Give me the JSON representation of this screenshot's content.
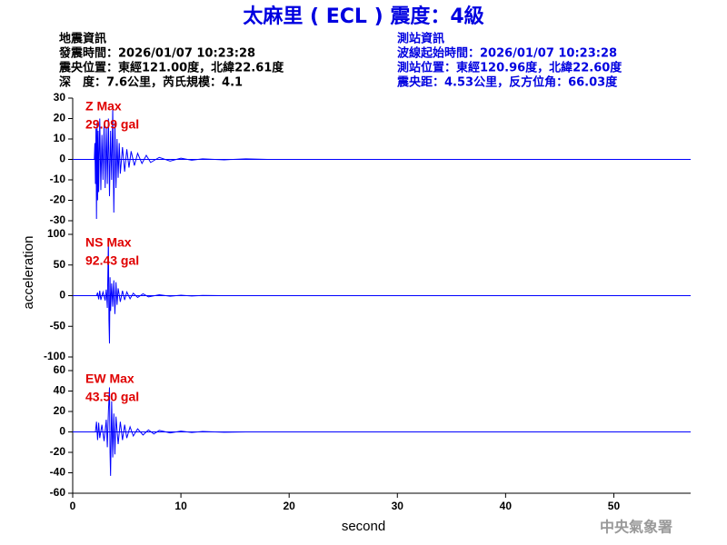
{
  "title": "太麻里 ( ECL ) 震度：4級",
  "event_info": [
    "地震資訊",
    "發震時間：2026/01/07 10:23:28",
    "震央位置：東經121.00度，北緯22.61度",
    "深　度：7.6公里，芮氏規模：4.1"
  ],
  "station_info": [
    "測站資訊",
    "波線起始時間：2026/01/07 10:23:28",
    "測站位置：東經120.96度，北緯22.60度",
    "震央距：4.53公里，反方位角：66.03度"
  ],
  "ylabel": "acceleration",
  "footer": "中央氣象署",
  "chart_data": [
    {
      "type": "line",
      "annotations": [
        "Z Max",
        "29.09 gal"
      ],
      "color": "#0000ff",
      "xlim": [
        0,
        57.1
      ],
      "ylim": [
        -30,
        30
      ],
      "yticks": [
        30,
        20,
        10,
        0,
        -10,
        -20,
        -30
      ],
      "x": [
        0,
        2.0,
        2.05,
        2.1,
        2.15,
        2.2,
        2.25,
        2.3,
        2.35,
        2.4,
        2.5,
        2.6,
        2.7,
        2.8,
        2.9,
        3.0,
        3.1,
        3.2,
        3.3,
        3.4,
        3.5,
        3.6,
        3.7,
        3.8,
        3.9,
        4.0,
        4.1,
        4.2,
        4.3,
        4.4,
        4.6,
        4.8,
        5.0,
        5.2,
        5.4,
        5.7,
        6.0,
        6.4,
        6.8,
        7.2,
        8.0,
        9.0,
        10.0,
        11.0,
        12.0,
        14.0,
        16.0,
        18.0,
        57
      ],
      "values": [
        0,
        0,
        8,
        -12,
        15,
        -29.09,
        18,
        -20,
        14,
        -16,
        20,
        -15,
        12,
        -10,
        17,
        -14,
        16,
        -12,
        20,
        -18,
        14,
        -10,
        25,
        -26,
        18,
        -14,
        10,
        -9,
        8,
        -7,
        6,
        -6,
        5,
        -4,
        4,
        -3,
        3,
        -2,
        2,
        -1.5,
        1,
        -0.8,
        0.6,
        -0.4,
        0.3,
        -0.2,
        0.3,
        0,
        0
      ]
    },
    {
      "type": "line",
      "annotations": [
        "NS Max",
        "92.43 gal"
      ],
      "color": "#0000ff",
      "xlim": [
        0,
        57.1
      ],
      "ylim": [
        -100,
        100
      ],
      "yticks": [
        100,
        50,
        0,
        -50,
        -100
      ],
      "x": [
        0,
        2.2,
        2.3,
        2.4,
        2.5,
        2.6,
        2.8,
        3.0,
        3.1,
        3.2,
        3.3,
        3.35,
        3.4,
        3.45,
        3.5,
        3.6,
        3.7,
        3.8,
        3.9,
        4.0,
        4.1,
        4.2,
        4.4,
        4.6,
        4.8,
        5.0,
        5.3,
        5.6,
        6.0,
        6.5,
        7.0,
        8.0,
        9.0,
        10.0,
        11.0,
        12.0,
        14.0,
        57
      ],
      "values": [
        0,
        0,
        5,
        -6,
        8,
        -7,
        6,
        -8,
        10,
        -20,
        92.43,
        -40,
        -78,
        30,
        -25,
        20,
        -18,
        25,
        -30,
        22,
        -15,
        12,
        -10,
        8,
        -7,
        6,
        -5,
        4,
        -3,
        3,
        -2,
        1.5,
        -1,
        0.8,
        -0.5,
        0.3,
        0,
        0
      ]
    },
    {
      "type": "line",
      "annotations": [
        "EW Max",
        "43.50 gal"
      ],
      "color": "#0000ff",
      "xlim": [
        0,
        57.1
      ],
      "ylim": [
        -60,
        60
      ],
      "yticks": [
        60,
        40,
        20,
        0,
        -20,
        -40,
        -60
      ],
      "xticks": [
        0,
        10,
        20,
        30,
        40,
        50
      ],
      "xlabel": "second",
      "x": [
        0,
        2.1,
        2.2,
        2.3,
        2.4,
        2.5,
        2.7,
        2.9,
        3.1,
        3.2,
        3.3,
        3.4,
        3.45,
        3.5,
        3.6,
        3.7,
        3.8,
        3.9,
        4.0,
        4.2,
        4.4,
        4.6,
        4.8,
        5.0,
        5.3,
        5.6,
        6.0,
        6.5,
        7.0,
        7.5,
        8.0,
        9.0,
        10.0,
        11.0,
        12.0,
        14.0,
        16.0,
        57
      ],
      "values": [
        0,
        0,
        10,
        -8,
        9,
        -6,
        7,
        -9,
        12,
        -15,
        20,
        43.5,
        -20,
        -43,
        30,
        -25,
        18,
        -22,
        15,
        -12,
        10,
        -8,
        7,
        -6,
        5,
        -4,
        3,
        -3,
        2,
        -2,
        1.5,
        -1,
        0.8,
        -0.6,
        0.4,
        -0.3,
        0,
        0
      ]
    }
  ]
}
